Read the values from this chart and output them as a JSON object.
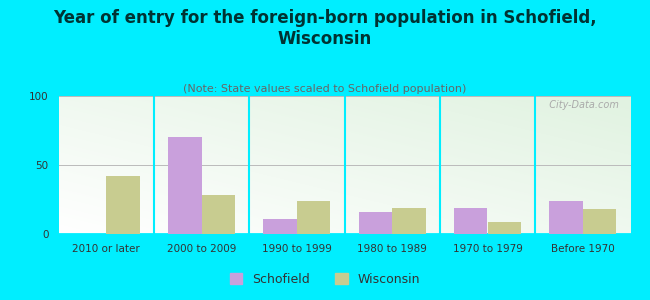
{
  "title": "Year of entry for the foreign-born population in Schofield,\nWisconsin",
  "subtitle": "(Note: State values scaled to Schofield population)",
  "categories": [
    "2010 or later",
    "2000 to 2009",
    "1990 to 1999",
    "1980 to 1989",
    "1970 to 1979",
    "Before 1970"
  ],
  "schofield_values": [
    0,
    70,
    11,
    16,
    19,
    24
  ],
  "wisconsin_values": [
    42,
    28,
    24,
    19,
    9,
    18
  ],
  "schofield_color": "#c9a0dc",
  "wisconsin_color": "#c8cc90",
  "background_outer": "#00eeff",
  "ylim": [
    0,
    100
  ],
  "yticks": [
    0,
    50,
    100
  ],
  "bar_width": 0.35,
  "title_fontsize": 12,
  "subtitle_fontsize": 8,
  "tick_fontsize": 7.5,
  "legend_fontsize": 9,
  "watermark": "  City-Data.com"
}
